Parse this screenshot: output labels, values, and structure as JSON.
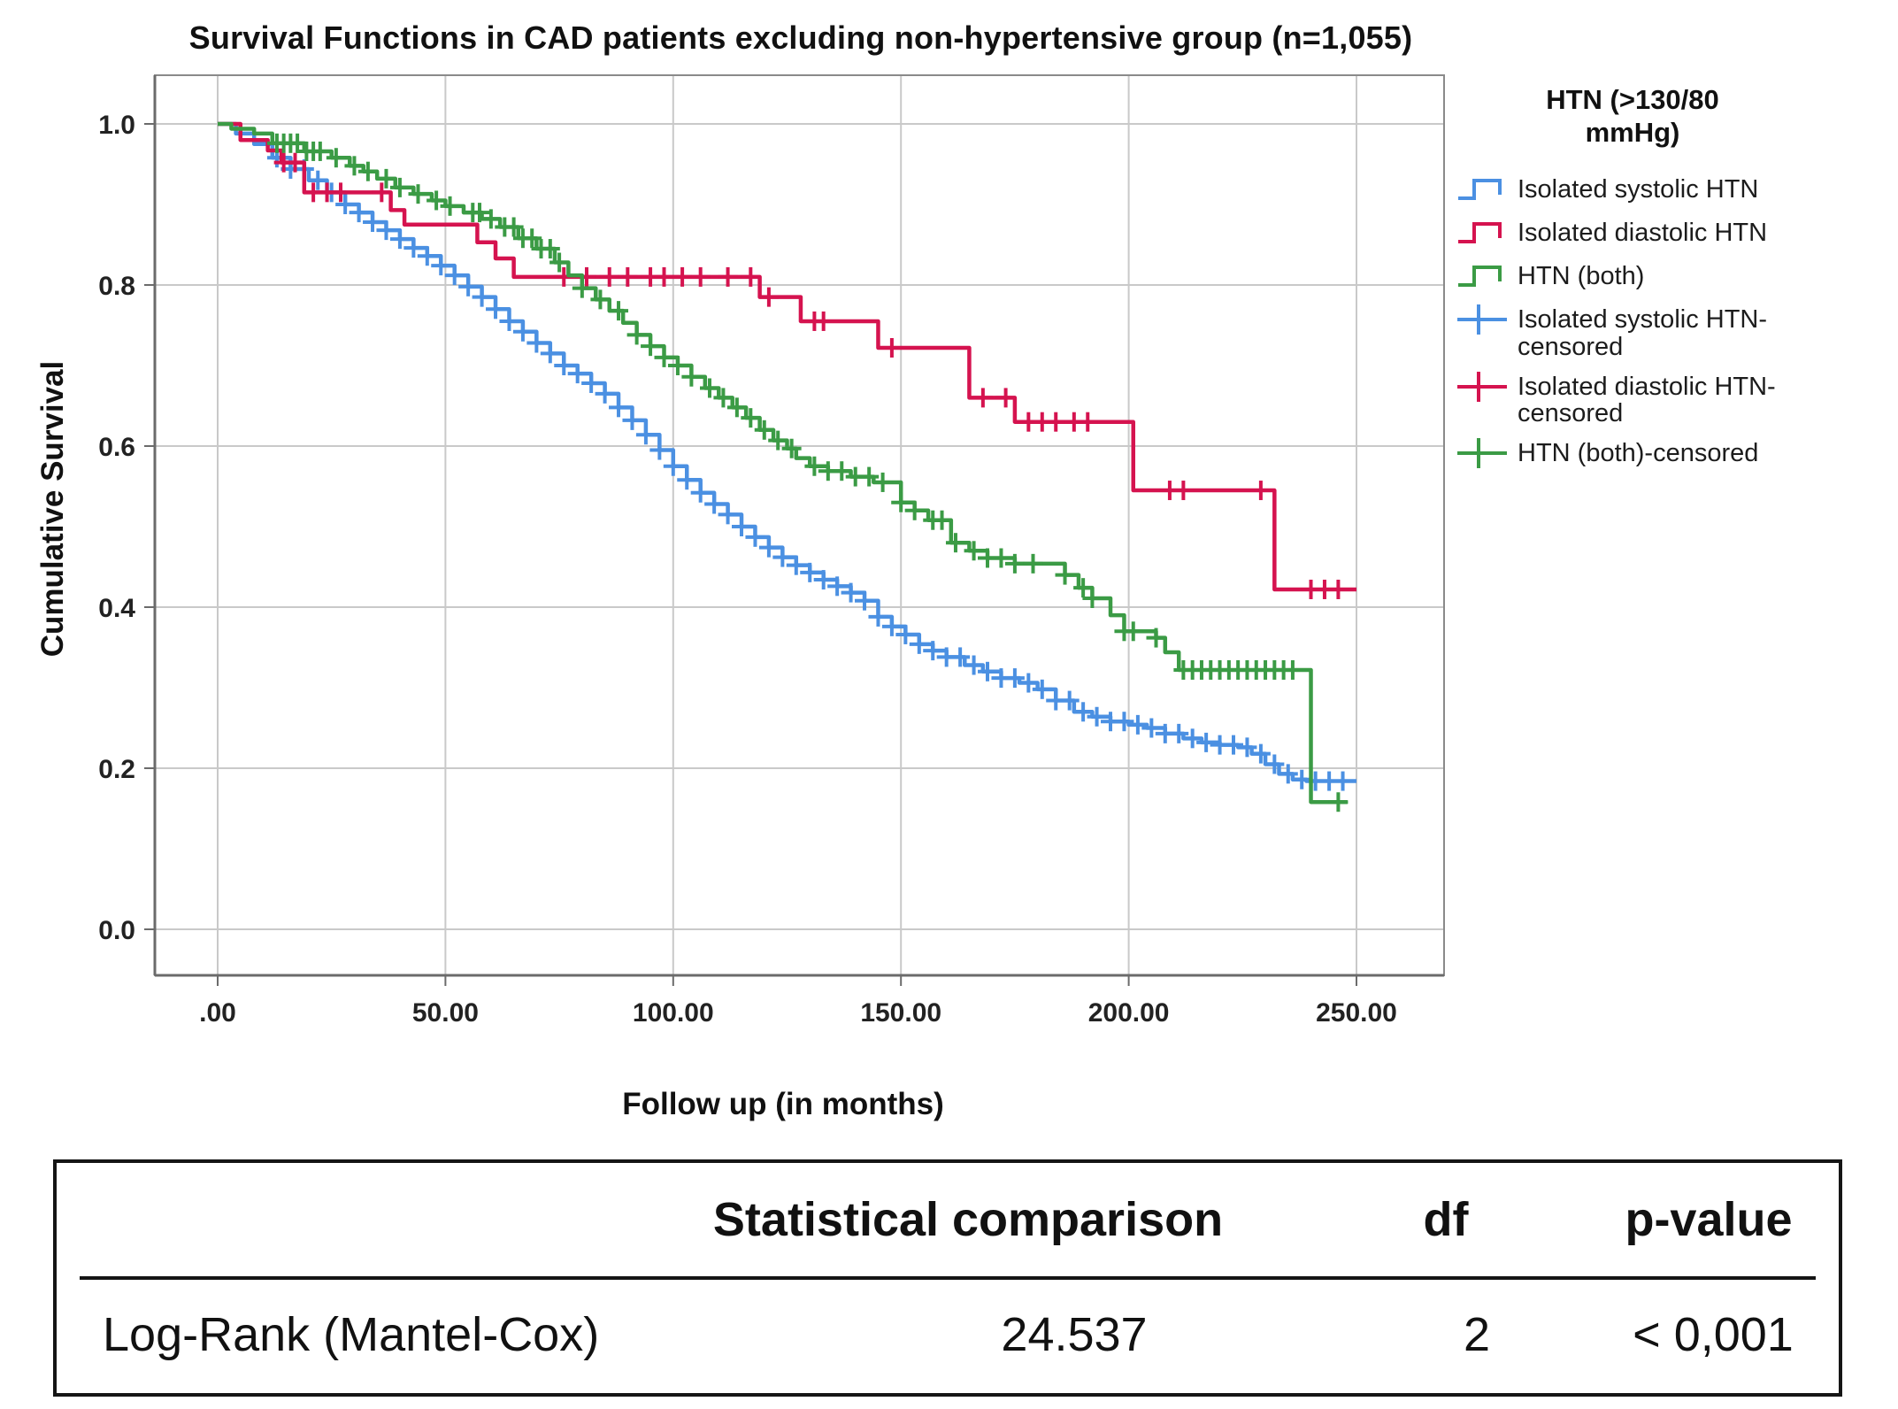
{
  "title": "Survival Functions in CAD patients excluding non-hypertensive group (n=1,055)",
  "axes": {
    "x_label": "Follow up (in months)",
    "y_label": "Cumulative Survival",
    "x_ticks": [
      {
        "value": 0,
        "label": ".00"
      },
      {
        "value": 50,
        "label": "50.00"
      },
      {
        "value": 100,
        "label": "100.00"
      },
      {
        "value": 150,
        "label": "150.00"
      },
      {
        "value": 200,
        "label": "200.00"
      },
      {
        "value": 250,
        "label": "250.00"
      }
    ],
    "y_ticks": [
      {
        "value": 0.0,
        "label": "0.0"
      },
      {
        "value": 0.2,
        "label": "0.2"
      },
      {
        "value": 0.4,
        "label": "0.4"
      },
      {
        "value": 0.6,
        "label": "0.6"
      },
      {
        "value": 0.8,
        "label": "0.8"
      },
      {
        "value": 1.0,
        "label": "1.0"
      }
    ]
  },
  "colors": {
    "blue": "#4B90E2",
    "red": "#D5134F",
    "green": "#3B9B45",
    "grid": "#C9C9C9",
    "axis": "#6B6B6B",
    "box": "#8A8A8A"
  },
  "legend": {
    "title_lines": [
      "HTN (>130/80",
      "mmHg)"
    ],
    "entries": [
      {
        "label": "Isolated systolic HTN",
        "color": "#4B90E2",
        "type": "step"
      },
      {
        "label": "Isolated diastolic HTN",
        "color": "#D5134F",
        "type": "step"
      },
      {
        "label": "HTN (both)",
        "color": "#3B9B45",
        "type": "step"
      },
      {
        "label": "Isolated systolic HTN-censored",
        "color": "#4B90E2",
        "type": "censor"
      },
      {
        "label": "Isolated diastolic HTN-censored",
        "color": "#D5134F",
        "type": "censor"
      },
      {
        "label": "HTN (both)-censored",
        "color": "#3B9B45",
        "type": "censor"
      }
    ]
  },
  "chart_data": {
    "type": "line",
    "subtype": "kaplan-meier-step",
    "title": "Survival Functions in CAD patients excluding non-hypertensive group (n=1,055)",
    "xlabel": "Follow up (in months)",
    "ylabel": "Cumulative Survival",
    "xlim": [
      0,
      269
    ],
    "ylim": [
      0,
      1.05
    ],
    "grid": true,
    "legend_position": "right",
    "series": [
      {
        "name": "Isolated systolic HTN",
        "color": "#4B90E2",
        "steps": [
          [
            0,
            1.0
          ],
          [
            4,
            0.988
          ],
          [
            8,
            0.975
          ],
          [
            12,
            0.958
          ],
          [
            16,
            0.944
          ],
          [
            20,
            0.93
          ],
          [
            24,
            0.915
          ],
          [
            28,
            0.9
          ],
          [
            31,
            0.89
          ],
          [
            34,
            0.878
          ],
          [
            37,
            0.868
          ],
          [
            40,
            0.857
          ],
          [
            43,
            0.846
          ],
          [
            46,
            0.836
          ],
          [
            49,
            0.824
          ],
          [
            52,
            0.812
          ],
          [
            55,
            0.798
          ],
          [
            58,
            0.785
          ],
          [
            61,
            0.77
          ],
          [
            64,
            0.755
          ],
          [
            67,
            0.742
          ],
          [
            70,
            0.728
          ],
          [
            73,
            0.715
          ],
          [
            76,
            0.7
          ],
          [
            79,
            0.69
          ],
          [
            82,
            0.678
          ],
          [
            85,
            0.665
          ],
          [
            88,
            0.648
          ],
          [
            91,
            0.632
          ],
          [
            94,
            0.614
          ],
          [
            97,
            0.595
          ],
          [
            100,
            0.575
          ],
          [
            103,
            0.558
          ],
          [
            106,
            0.542
          ],
          [
            109,
            0.528
          ],
          [
            112,
            0.515
          ],
          [
            115,
            0.5
          ],
          [
            118,
            0.487
          ],
          [
            121,
            0.474
          ],
          [
            124,
            0.462
          ],
          [
            127,
            0.452
          ],
          [
            130,
            0.443
          ],
          [
            133,
            0.434
          ],
          [
            136,
            0.426
          ],
          [
            139,
            0.418
          ],
          [
            142,
            0.408
          ],
          [
            145,
            0.388
          ],
          [
            148,
            0.376
          ],
          [
            151,
            0.366
          ],
          [
            154,
            0.354
          ],
          [
            157,
            0.346
          ],
          [
            160,
            0.338
          ],
          [
            164,
            0.328
          ],
          [
            168,
            0.32
          ],
          [
            172,
            0.312
          ],
          [
            176,
            0.306
          ],
          [
            180,
            0.298
          ],
          [
            184,
            0.284
          ],
          [
            188,
            0.27
          ],
          [
            192,
            0.264
          ],
          [
            196,
            0.258
          ],
          [
            200,
            0.254
          ],
          [
            204,
            0.25
          ],
          [
            208,
            0.243
          ],
          [
            212,
            0.237
          ],
          [
            216,
            0.232
          ],
          [
            220,
            0.229
          ],
          [
            224,
            0.226
          ],
          [
            227,
            0.218
          ],
          [
            230,
            0.205
          ],
          [
            233,
            0.193
          ],
          [
            236,
            0.186
          ],
          [
            239,
            0.184
          ],
          [
            250,
            0.184
          ]
        ],
        "censor_times": [
          13,
          16,
          19,
          22,
          25,
          28,
          31,
          34,
          37,
          40,
          43,
          46,
          49,
          52,
          55,
          58,
          61,
          64,
          67,
          70,
          73,
          76,
          79,
          82,
          85,
          88,
          91,
          94,
          97,
          100,
          103,
          106,
          109,
          112,
          115,
          118,
          121,
          124,
          127,
          130,
          133,
          136,
          139,
          142,
          145,
          148,
          151,
          154,
          157,
          160,
          163,
          166,
          169,
          172,
          175,
          178,
          181,
          184,
          187,
          190,
          193,
          196,
          199,
          202,
          205,
          208,
          211,
          214,
          217,
          220,
          223,
          226,
          229,
          232,
          235,
          238,
          241,
          244,
          247
        ]
      },
      {
        "name": "Isolated diastolic HTN",
        "color": "#D5134F",
        "steps": [
          [
            0,
            1.0
          ],
          [
            5,
            0.98
          ],
          [
            11,
            0.967
          ],
          [
            14,
            0.952
          ],
          [
            19,
            0.915
          ],
          [
            38,
            0.893
          ],
          [
            41,
            0.875
          ],
          [
            57,
            0.853
          ],
          [
            61,
            0.833
          ],
          [
            65,
            0.81
          ],
          [
            119,
            0.785
          ],
          [
            128,
            0.755
          ],
          [
            145,
            0.722
          ],
          [
            165,
            0.66
          ],
          [
            175,
            0.63
          ],
          [
            201,
            0.545
          ],
          [
            232,
            0.422
          ],
          [
            250,
            0.422
          ]
        ],
        "censor_times": [
          14.5,
          17,
          21,
          24,
          27,
          36,
          76,
          81,
          86,
          90,
          95,
          98,
          102,
          106,
          112,
          117,
          121,
          131,
          133,
          148,
          168,
          173,
          178,
          181,
          184,
          188,
          191,
          209,
          212,
          229,
          240,
          243,
          246
        ]
      },
      {
        "name": "HTN (both)",
        "color": "#3B9B45",
        "steps": [
          [
            0,
            1.0
          ],
          [
            3,
            0.994
          ],
          [
            8,
            0.988
          ],
          [
            12,
            0.976
          ],
          [
            19,
            0.966
          ],
          [
            25,
            0.958
          ],
          [
            29,
            0.948
          ],
          [
            32,
            0.941
          ],
          [
            35,
            0.932
          ],
          [
            39,
            0.921
          ],
          [
            43,
            0.913
          ],
          [
            47,
            0.905
          ],
          [
            50,
            0.898
          ],
          [
            54,
            0.89
          ],
          [
            58,
            0.882
          ],
          [
            62,
            0.872
          ],
          [
            66,
            0.858
          ],
          [
            70,
            0.845
          ],
          [
            74,
            0.828
          ],
          [
            77,
            0.812
          ],
          [
            80,
            0.796
          ],
          [
            83,
            0.782
          ],
          [
            86,
            0.768
          ],
          [
            89,
            0.753
          ],
          [
            92,
            0.738
          ],
          [
            95,
            0.724
          ],
          [
            98,
            0.71
          ],
          [
            101,
            0.7
          ],
          [
            104,
            0.686
          ],
          [
            107,
            0.672
          ],
          [
            110,
            0.66
          ],
          [
            113,
            0.648
          ],
          [
            116,
            0.635
          ],
          [
            119,
            0.62
          ],
          [
            122,
            0.607
          ],
          [
            125,
            0.597
          ],
          [
            127,
            0.585
          ],
          [
            130,
            0.575
          ],
          [
            134,
            0.569
          ],
          [
            139,
            0.562
          ],
          [
            144,
            0.555
          ],
          [
            150,
            0.53
          ],
          [
            153,
            0.52
          ],
          [
            156,
            0.508
          ],
          [
            161,
            0.48
          ],
          [
            165,
            0.47
          ],
          [
            169,
            0.461
          ],
          [
            175,
            0.454
          ],
          [
            186,
            0.44
          ],
          [
            189,
            0.424
          ],
          [
            192,
            0.411
          ],
          [
            196,
            0.39
          ],
          [
            199,
            0.37
          ],
          [
            206,
            0.362
          ],
          [
            208,
            0.344
          ],
          [
            211,
            0.322
          ],
          [
            239,
            0.322
          ],
          [
            240,
            0.158
          ],
          [
            248,
            0.158
          ]
        ],
        "censor_times": [
          13,
          14.5,
          16,
          17.5,
          19.5,
          21,
          22.5,
          26,
          30,
          33,
          37,
          40,
          44,
          48,
          51,
          56,
          57.5,
          60,
          63,
          65,
          67,
          69,
          71,
          73,
          75,
          80,
          84,
          88,
          92,
          95,
          98,
          101,
          104,
          108,
          111,
          114,
          117,
          120,
          123,
          126,
          131,
          134,
          137,
          140,
          143,
          146,
          150,
          153,
          157,
          159,
          162,
          166,
          169,
          172,
          175,
          179,
          186,
          190,
          192,
          199,
          201,
          206,
          212,
          214,
          216,
          218,
          220,
          222,
          224,
          226,
          228,
          230,
          232,
          234,
          236,
          246
        ]
      }
    ]
  },
  "table": {
    "headers": [
      "",
      "Statistical comparison",
      "df",
      "p-value"
    ],
    "rows": [
      [
        "Log-Rank (Mantel-Cox)",
        "24.537",
        "2",
        "< 0,001"
      ]
    ]
  }
}
